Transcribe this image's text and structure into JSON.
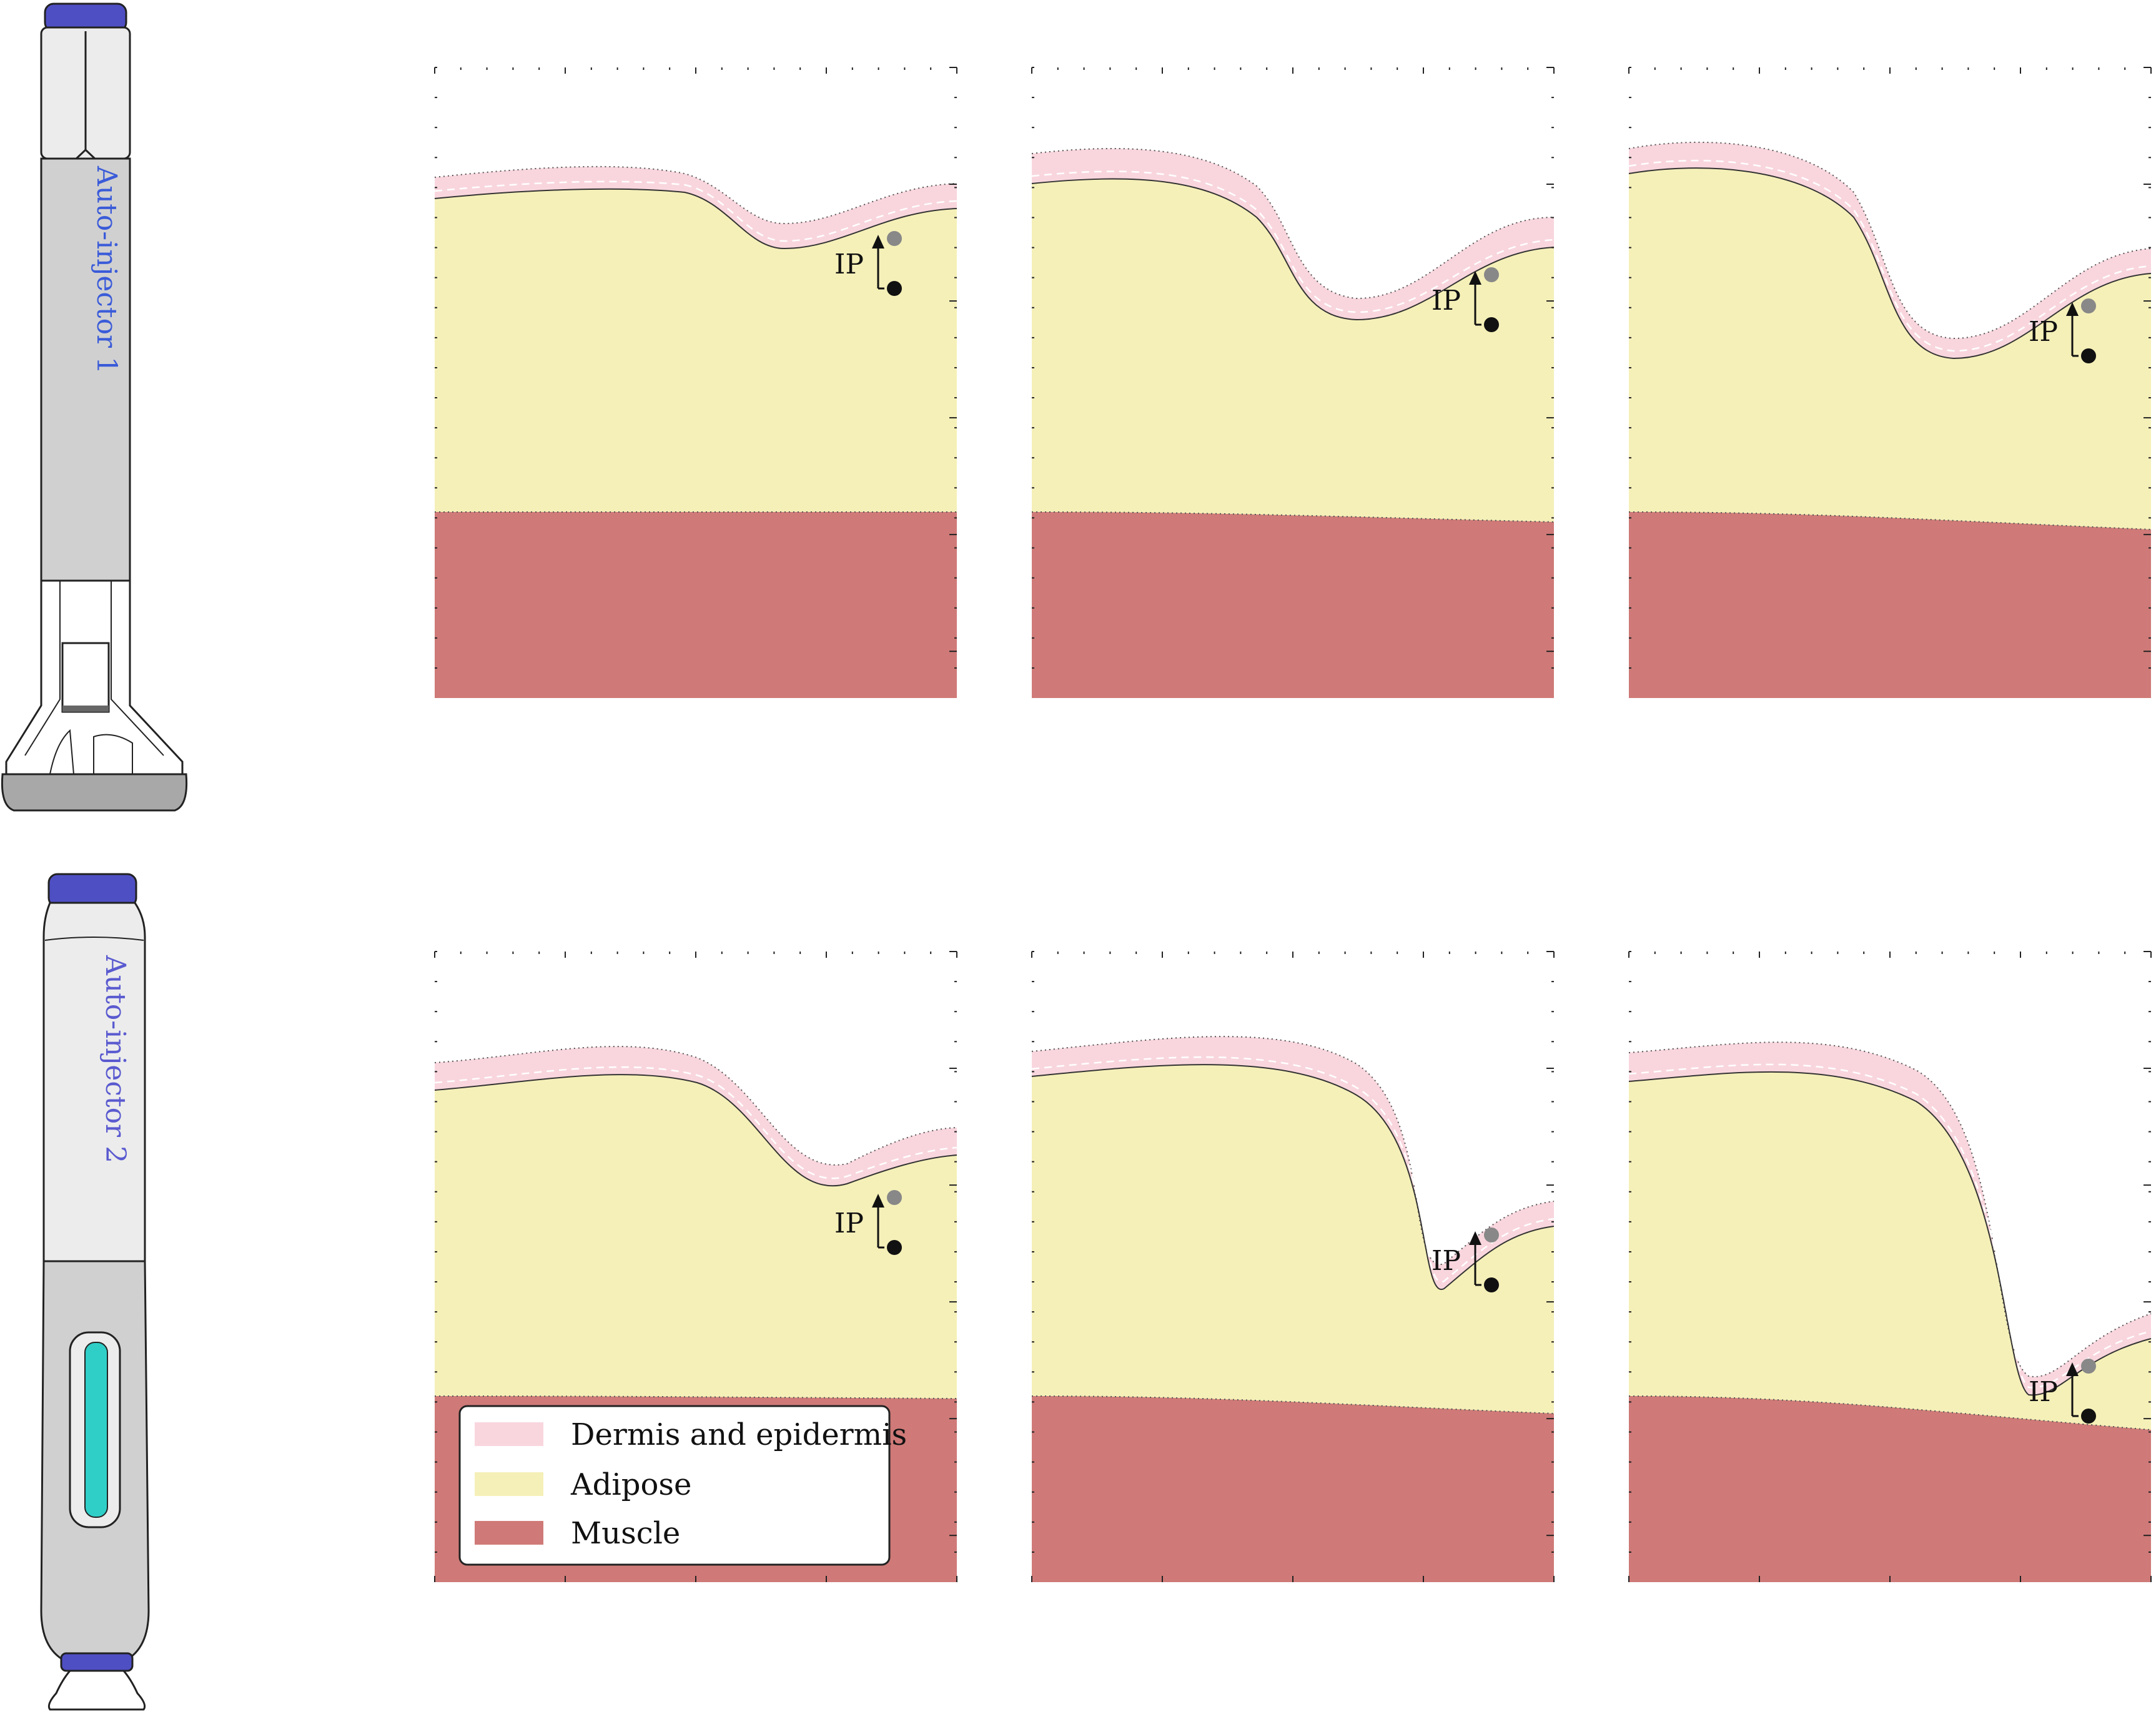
{
  "devices": [
    {
      "label": "Auto-injector 1",
      "label_color": "#3a5bd9",
      "cap_color": "#4f4fc4"
    },
    {
      "label": "Auto-injector 2",
      "label_color": "#5a5ad0",
      "cap_color": "#4f4fc4",
      "window_color": "#2fcfc8"
    }
  ],
  "panels": {
    "ip_label": "IP",
    "count": 6,
    "rows": 2,
    "cols": 3
  },
  "legend": {
    "items": [
      {
        "label": "Dermis and epidermis",
        "color": "#f9d6de"
      },
      {
        "label": "Adipose",
        "color": "#f5f0b8"
      },
      {
        "label": "Muscle",
        "color": "#cf7a78"
      }
    ]
  },
  "colors": {
    "dermis": "#f9d6de",
    "adipose": "#f5f0b8",
    "muscle": "#cf7a78",
    "device_body_light": "#ececec",
    "device_body_dark": "#d0d0d0",
    "device_base": "#a8a8a8"
  }
}
